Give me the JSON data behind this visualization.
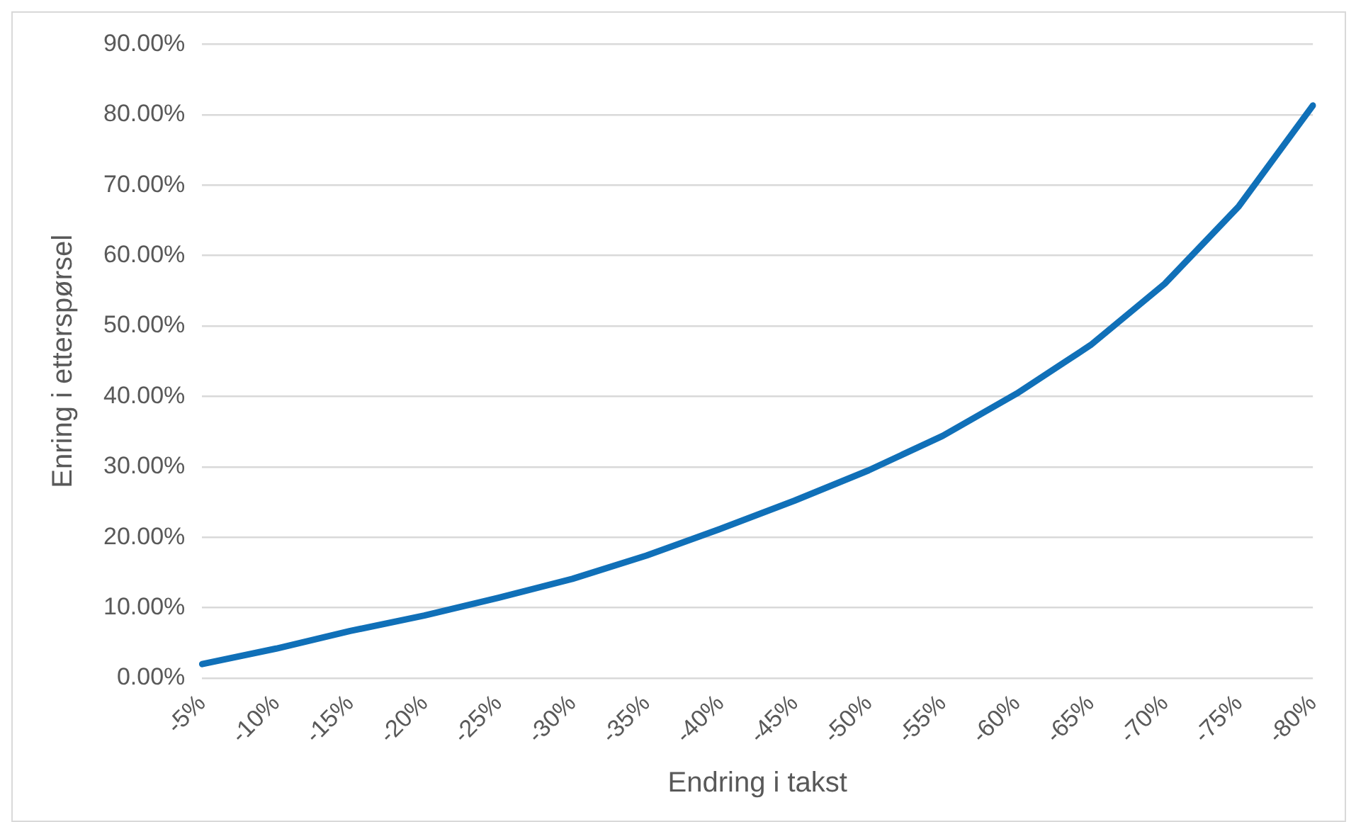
{
  "chart_data": {
    "type": "line",
    "xlabel": "Endring i takst",
    "ylabel": "Enring i etterspørsel",
    "categories": [
      "-5%",
      "-10%",
      "-15%",
      "-20%",
      "-25%",
      "-30%",
      "-35%",
      "-40%",
      "-45%",
      "-50%",
      "-55%",
      "-60%",
      "-65%",
      "-70%",
      "-75%",
      "-80%"
    ],
    "series": [
      {
        "color": "#1070b8",
        "values": [
          2.0,
          4.2,
          6.7,
          8.9,
          11.4,
          14.1,
          17.4,
          21.2,
          25.2,
          29.5,
          34.4,
          40.4,
          47.3,
          56.0,
          67.0,
          81.3
        ]
      }
    ],
    "ylim": [
      0,
      90
    ],
    "yticks": [
      {
        "value": 0,
        "label": "0.00%"
      },
      {
        "value": 10,
        "label": "10.00%"
      },
      {
        "value": 20,
        "label": "20.00%"
      },
      {
        "value": 30,
        "label": "30.00%"
      },
      {
        "value": 40,
        "label": "40.00%"
      },
      {
        "value": 50,
        "label": "50.00%"
      },
      {
        "value": 60,
        "label": "60.00%"
      },
      {
        "value": 70,
        "label": "70.00%"
      },
      {
        "value": 80,
        "label": "80.00%"
      },
      {
        "value": 90,
        "label": "90.00%"
      }
    ],
    "grid": "y",
    "legend": false,
    "marker": "none",
    "line_style": "solid"
  }
}
